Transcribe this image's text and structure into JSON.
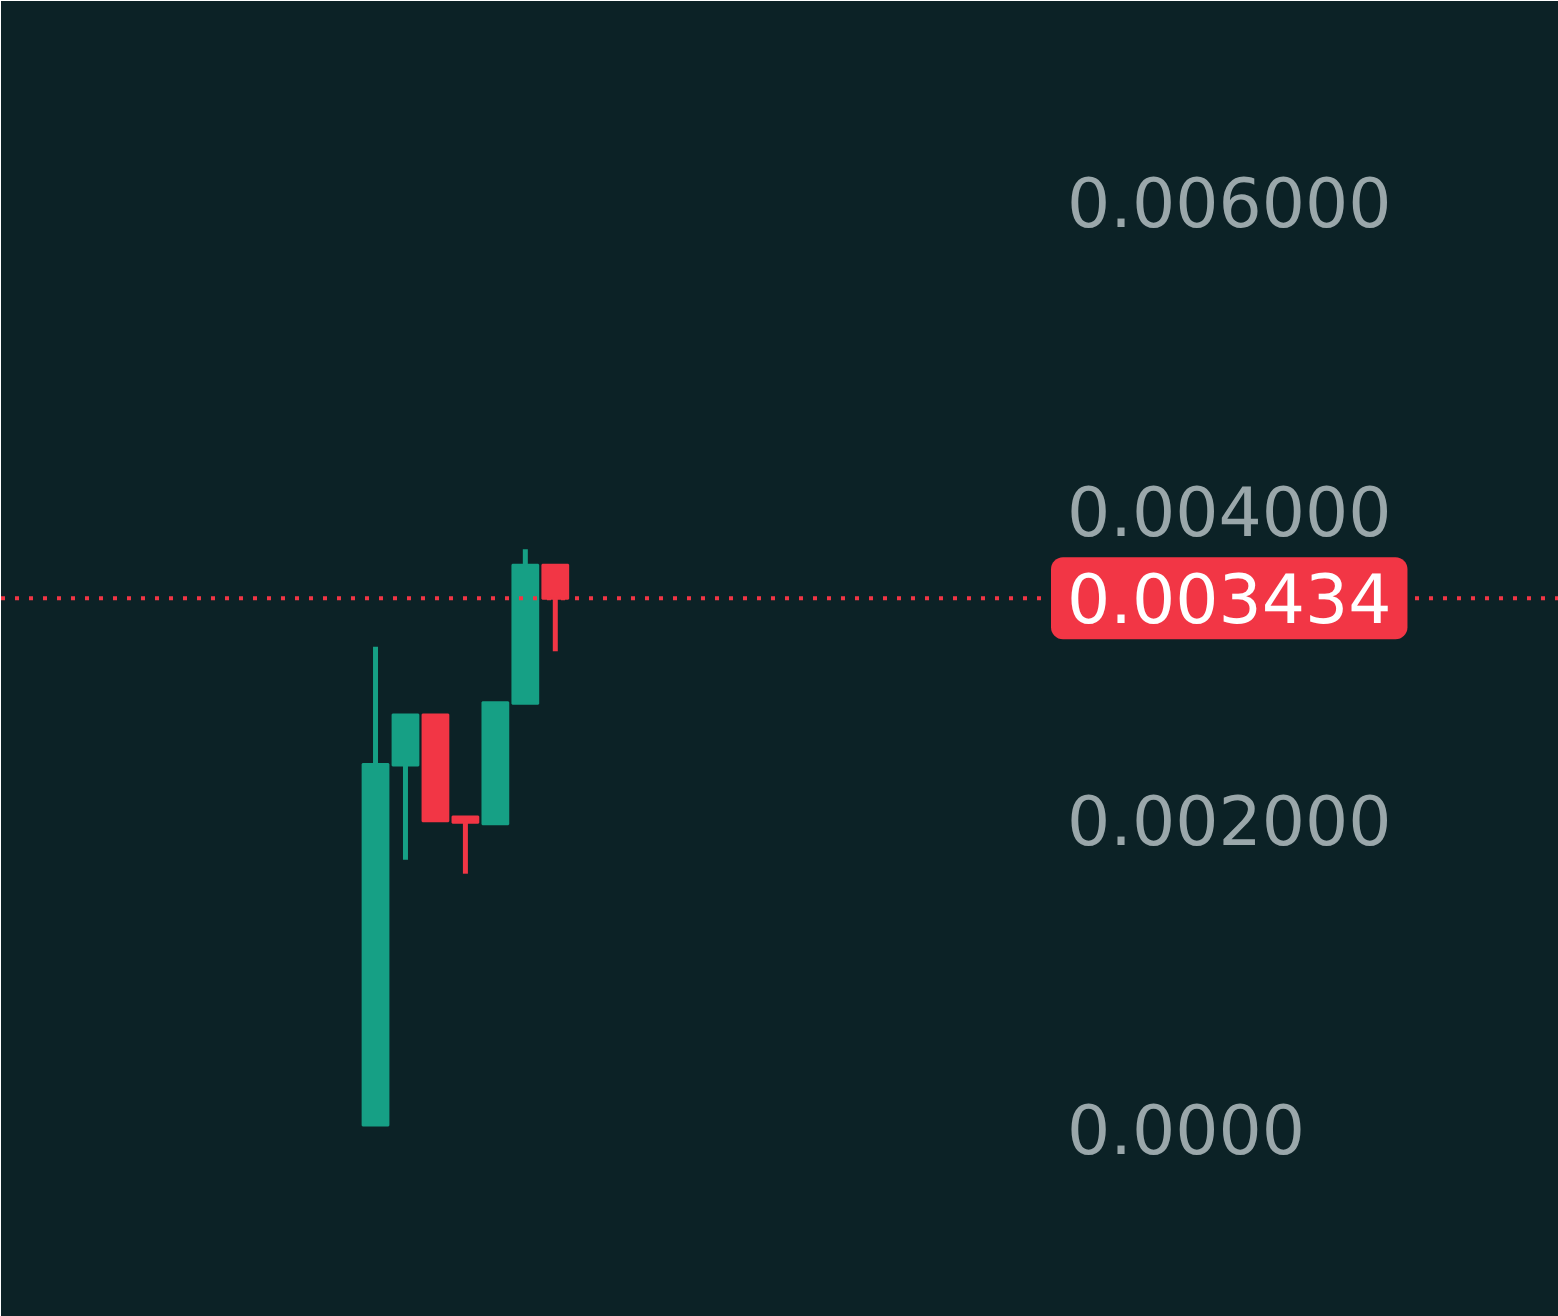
{
  "chart_data": {
    "type": "candlestick",
    "categories": [
      null,
      null,
      null,
      null,
      null,
      null,
      null,
      null,
      null,
      null,
      null,
      null,
      null,
      null,
      null,
      null,
      null,
      null,
      null,
      null,
      null,
      null,
      null,
      null,
      null,
      null,
      null,
      null,
      null,
      null,
      null,
      null,
      null,
      null,
      null,
      null,
      null,
      null,
      null,
      null,
      null,
      null,
      null,
      null,
      null,
      null,
      null,
      null,
      null,
      null,
      null,
      null
    ],
    "ohlc": [
      null,
      null,
      null,
      null,
      null,
      null,
      null,
      null,
      null,
      null,
      null,
      null,
      [
        2e-05,
        0.00312,
        2e-05,
        0.00236
      ],
      [
        0.00235,
        0.00268,
        0.00174,
        0.00268
      ],
      [
        0.00268,
        0.00268,
        0.00199,
        0.00199
      ],
      [
        0.00202,
        0.00202,
        0.00165,
        0.00198
      ],
      [
        0.00197,
        0.00276,
        0.00197,
        0.00276
      ],
      [
        0.00275,
        0.00375,
        0.00275,
        0.00365
      ],
      [
        0.00365,
        0.00365,
        0.00309,
        0.00343
      ],
      null,
      null,
      null,
      null,
      null,
      null,
      null,
      null,
      null,
      null,
      null,
      null,
      null,
      null,
      null,
      null,
      null,
      null,
      null,
      null,
      null,
      null,
      null,
      null,
      null,
      null,
      null,
      null,
      null,
      null,
      null,
      null,
      null
    ],
    "colors": [
      null,
      null,
      null,
      null,
      null,
      null,
      null,
      null,
      null,
      null,
      null,
      null,
      "#16a085",
      "#16a085",
      "#f23645",
      "#f23645",
      "#16a085",
      "#16a085",
      "#f23645",
      null,
      null,
      null,
      null,
      null,
      null,
      null,
      null,
      null,
      null,
      null,
      null,
      null,
      null,
      null,
      null,
      null,
      null,
      null,
      null,
      null,
      null,
      null,
      null,
      null,
      null,
      null,
      null,
      null,
      null,
      null,
      null,
      null
    ],
    "ylim": [
      -0.00122,
      0.0073
    ],
    "yticks": [
      {
        "value": 0,
        "label": "0.0000"
      },
      {
        "value": 0.002,
        "label": "0.002000"
      },
      {
        "value": 0.004,
        "label": "0.004000"
      },
      {
        "value": 0.006,
        "label": "0.006000"
      }
    ],
    "ref_lines": [
      {
        "axis": "y",
        "value": 0.003434,
        "label": "0.003434",
        "color": "#f23645",
        "line_style": "dotted"
      }
    ],
    "grid": false
  }
}
